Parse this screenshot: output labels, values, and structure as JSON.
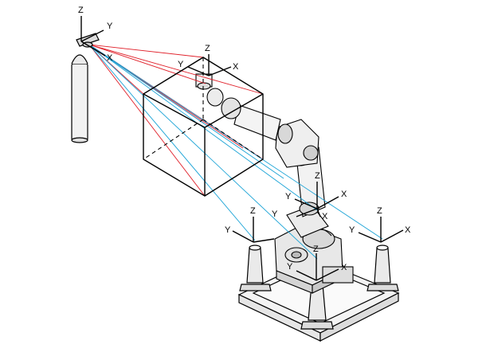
{
  "colors": {
    "red_ray": "#e0202a",
    "blue_ray": "#1aa3d6",
    "ink": "#000000",
    "fill_light": "#f2f2f2",
    "fill_mid": "#d8d8d8"
  },
  "frames": {
    "tracker": {
      "x": "X",
      "y": "Y",
      "z": "Z"
    },
    "tool": {
      "x": "X",
      "y": "Y",
      "z": "Z"
    },
    "robot_upper": {
      "x": "X",
      "y": "Y",
      "z": "Z"
    },
    "robot_base": {
      "x": "X",
      "y": "Y",
      "z": "Z"
    },
    "stand_left": {
      "y": "Y",
      "z": "Z"
    },
    "stand_right": {
      "x": "X",
      "y": "Y",
      "z": "Z"
    }
  },
  "icons": [
    "laser-tracker-icon",
    "calibration-cube-icon",
    "robot-arm-icon",
    "reference-stand-icon",
    "base-plate-icon"
  ]
}
